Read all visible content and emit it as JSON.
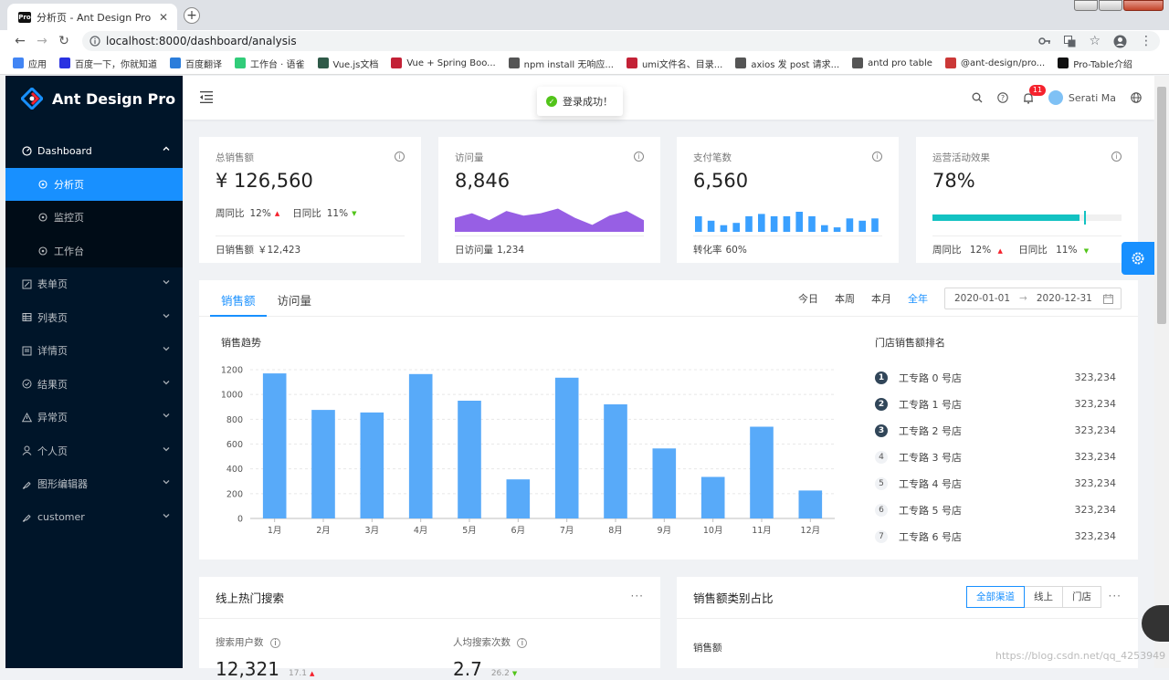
{
  "browser": {
    "tab_title": "分析页 - Ant Design Pro",
    "tab_favicon": "Pro",
    "url": "localhost:8000/dashboard/analysis",
    "bookmarks": [
      {
        "label": "应用",
        "icon": "apps-icon",
        "color": "#4285f4"
      },
      {
        "label": "百度一下，你就知道",
        "icon": "baidu-icon",
        "color": "#2932e1"
      },
      {
        "label": "百度翻译",
        "icon": "translate-icon",
        "color": "#2b7ddb"
      },
      {
        "label": "工作台 · 语雀",
        "icon": "yuque-icon",
        "color": "#31cc79"
      },
      {
        "label": "Vue.js文档",
        "icon": "vue-icon",
        "color": "#2f5a48"
      },
      {
        "label": "Vue + Spring Boo...",
        "icon": "csdn-icon",
        "color": "#c32136"
      },
      {
        "label": "npm install 无响应...",
        "icon": "link-icon",
        "color": "#555555"
      },
      {
        "label": "umi文件名、目录...",
        "icon": "csdn-icon",
        "color": "#c32136"
      },
      {
        "label": "axios 发 post 请求...",
        "icon": "link-icon",
        "color": "#555555"
      },
      {
        "label": "antd pro table",
        "icon": "link-icon",
        "color": "#555555"
      },
      {
        "label": "@ant-design/pro...",
        "icon": "npm-icon",
        "color": "#cb3837"
      },
      {
        "label": "Pro-Table介绍",
        "icon": "pro-icon",
        "color": "#111111"
      }
    ]
  },
  "app": {
    "logo_title": "Ant Design Pro",
    "toast": "登录成功！",
    "notification_count": "11",
    "user_name": "Serati Ma",
    "brand_color": "#1890ff",
    "sider_color": "#001529"
  },
  "menu": {
    "dashboard": {
      "label": "Dashboard",
      "icon": "dashboard-icon",
      "children": [
        {
          "label": "分析页",
          "active": true
        },
        {
          "label": "监控页",
          "active": false
        },
        {
          "label": "工作台",
          "active": false
        }
      ]
    },
    "items": [
      {
        "label": "表单页",
        "icon": "form-icon"
      },
      {
        "label": "列表页",
        "icon": "table-icon"
      },
      {
        "label": "详情页",
        "icon": "profile-icon"
      },
      {
        "label": "结果页",
        "icon": "check-circle-icon"
      },
      {
        "label": "异常页",
        "icon": "warning-icon"
      },
      {
        "label": "个人页",
        "icon": "user-icon"
      },
      {
        "label": "图形编辑器",
        "icon": "highlight-icon"
      },
      {
        "label": "customer",
        "icon": "highlight-icon"
      }
    ]
  },
  "cards": {
    "sales": {
      "title": "总销售额",
      "value": "¥ 126,560",
      "wow_label": "周同比",
      "wow": "12%",
      "dod_label": "日同比",
      "dod": "11%",
      "footer_label": "日销售额",
      "footer_value": "￥12,423"
    },
    "visits": {
      "title": "访问量",
      "value": "8,846",
      "footer_label": "日访问量",
      "footer_value": "1,234",
      "area_color": "#975fe4"
    },
    "payments": {
      "title": "支付笔数",
      "value": "6,560",
      "footer_label": "转化率",
      "footer_value": "60%",
      "bar_color": "#3aa0ff"
    },
    "operations": {
      "title": "运营活动效果",
      "value": "78%",
      "progress": 0.78,
      "target": 0.8,
      "progress_color": "#13c2c2",
      "wow_label": "周同比",
      "wow": "12%",
      "dod_label": "日同比",
      "dod": "11%"
    }
  },
  "sales_panel": {
    "tabs": [
      "销售额",
      "访问量"
    ],
    "active_tab": 0,
    "ranges": [
      "今日",
      "本周",
      "本月",
      "全年"
    ],
    "active_range": 3,
    "date_start": "2020-01-01",
    "date_end": "2020-12-31",
    "date_separator": "→",
    "chart_title": "销售趋势",
    "ranking_title": "门店销售额排名",
    "ranking": [
      {
        "num": "1",
        "name": "工专路 0 号店",
        "value": "323,234"
      },
      {
        "num": "2",
        "name": "工专路 1 号店",
        "value": "323,234"
      },
      {
        "num": "3",
        "name": "工专路 2 号店",
        "value": "323,234"
      },
      {
        "num": "4",
        "name": "工专路 3 号店",
        "value": "323,234"
      },
      {
        "num": "5",
        "name": "工专路 4 号店",
        "value": "323,234"
      },
      {
        "num": "6",
        "name": "工专路 5 号店",
        "value": "323,234"
      },
      {
        "num": "7",
        "name": "工专路 6 号店",
        "value": "323,234"
      }
    ]
  },
  "chart_data": {
    "type": "bar",
    "title": "销售趋势",
    "categories": [
      "1月",
      "2月",
      "3月",
      "4月",
      "5月",
      "6月",
      "7月",
      "8月",
      "9月",
      "10月",
      "11月",
      "12月"
    ],
    "values": [
      1170,
      875,
      855,
      1165,
      950,
      315,
      1135,
      920,
      565,
      335,
      740,
      225
    ],
    "ylim": [
      0,
      1200
    ],
    "yticks": [
      0,
      200,
      400,
      600,
      800,
      1000,
      1200
    ],
    "grid": true,
    "color": "#58aaf9"
  },
  "mini_charts": {
    "visits_area": [
      6,
      8,
      5,
      9,
      7,
      8,
      10,
      6,
      3,
      7,
      9,
      5
    ],
    "payments_bars": [
      7,
      5,
      3,
      4,
      7,
      8,
      7,
      7,
      9,
      7,
      3,
      2,
      6,
      5,
      6
    ]
  },
  "search_card": {
    "title": "线上热门搜索",
    "more": "···",
    "users_label": "搜索用户数",
    "users_value": "12,321",
    "users_change": "17.1",
    "per_user_label": "人均搜索次数",
    "per_user_value": "2.7",
    "per_user_change": "26.2"
  },
  "category_card": {
    "title": "销售额类别占比",
    "more": "···",
    "segments": [
      "全部渠道",
      "线上",
      "门店"
    ],
    "active_segment": 0,
    "sub_title": "销售额"
  },
  "watermark": "https://blog.csdn.net/qq_4253949"
}
